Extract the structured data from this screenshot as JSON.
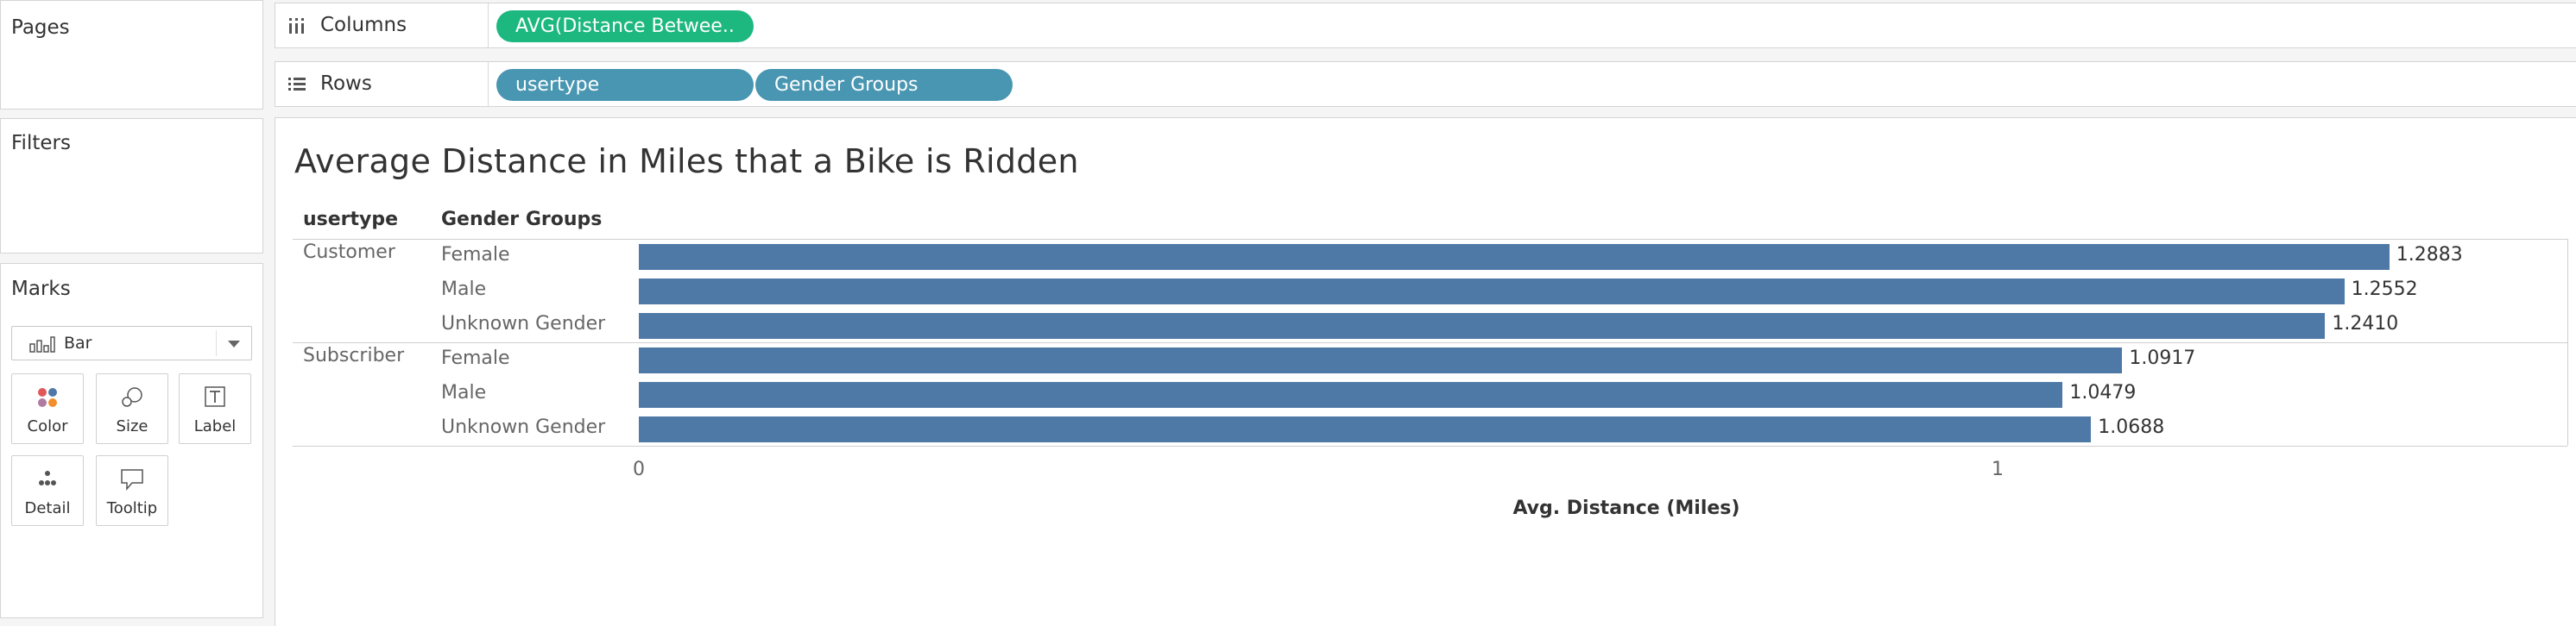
{
  "side_panels": {
    "pages_title": "Pages",
    "filters_title": "Filters",
    "marks_title": "Marks"
  },
  "marks": {
    "type_label": "Bar",
    "type_icon": "bar-chart-icon",
    "buttons": [
      {
        "label": "Color",
        "icon": "color-icon"
      },
      {
        "label": "Size",
        "icon": "size-icon"
      },
      {
        "label": "Label",
        "icon": "label-icon"
      },
      {
        "label": "Detail",
        "icon": "detail-icon"
      },
      {
        "label": "Tooltip",
        "icon": "tooltip-icon"
      }
    ]
  },
  "shelves": {
    "columns_label": "Columns",
    "columns_icon": "columns-icon",
    "columns_pills": [
      "AVG(Distance Betwee.."
    ],
    "rows_label": "Rows",
    "rows_icon": "rows-icon",
    "rows_pills": [
      "usertype",
      "Gender Groups"
    ]
  },
  "colors": {
    "green_pill": "#1db87f",
    "blue_pill": "#4996b2",
    "bar": "#4e79a7"
  },
  "view": {
    "title": "Average Distance in Miles that a Bike is Ridden",
    "header_col1": "usertype",
    "header_col2": "Gender Groups"
  },
  "chart_data": {
    "type": "bar",
    "orientation": "horizontal",
    "title": "Average Distance in Miles that a Bike is Ridden",
    "xlabel": "Avg. Distance (Miles)",
    "xlim": [
      0,
      1.35
    ],
    "x_ticks": [
      "0",
      "1"
    ],
    "groups": [
      {
        "name": "Customer",
        "categories": [
          "Female",
          "Male",
          "Unknown Gender"
        ],
        "values": [
          1.2883,
          1.2552,
          1.241
        ],
        "labels": [
          "1.2883",
          "1.2552",
          "1.2410"
        ]
      },
      {
        "name": "Subscriber",
        "categories": [
          "Female",
          "Male",
          "Unknown Gender"
        ],
        "values": [
          1.0917,
          1.0479,
          1.0688
        ],
        "labels": [
          "1.0917",
          "1.0479",
          "1.0688"
        ]
      }
    ]
  }
}
